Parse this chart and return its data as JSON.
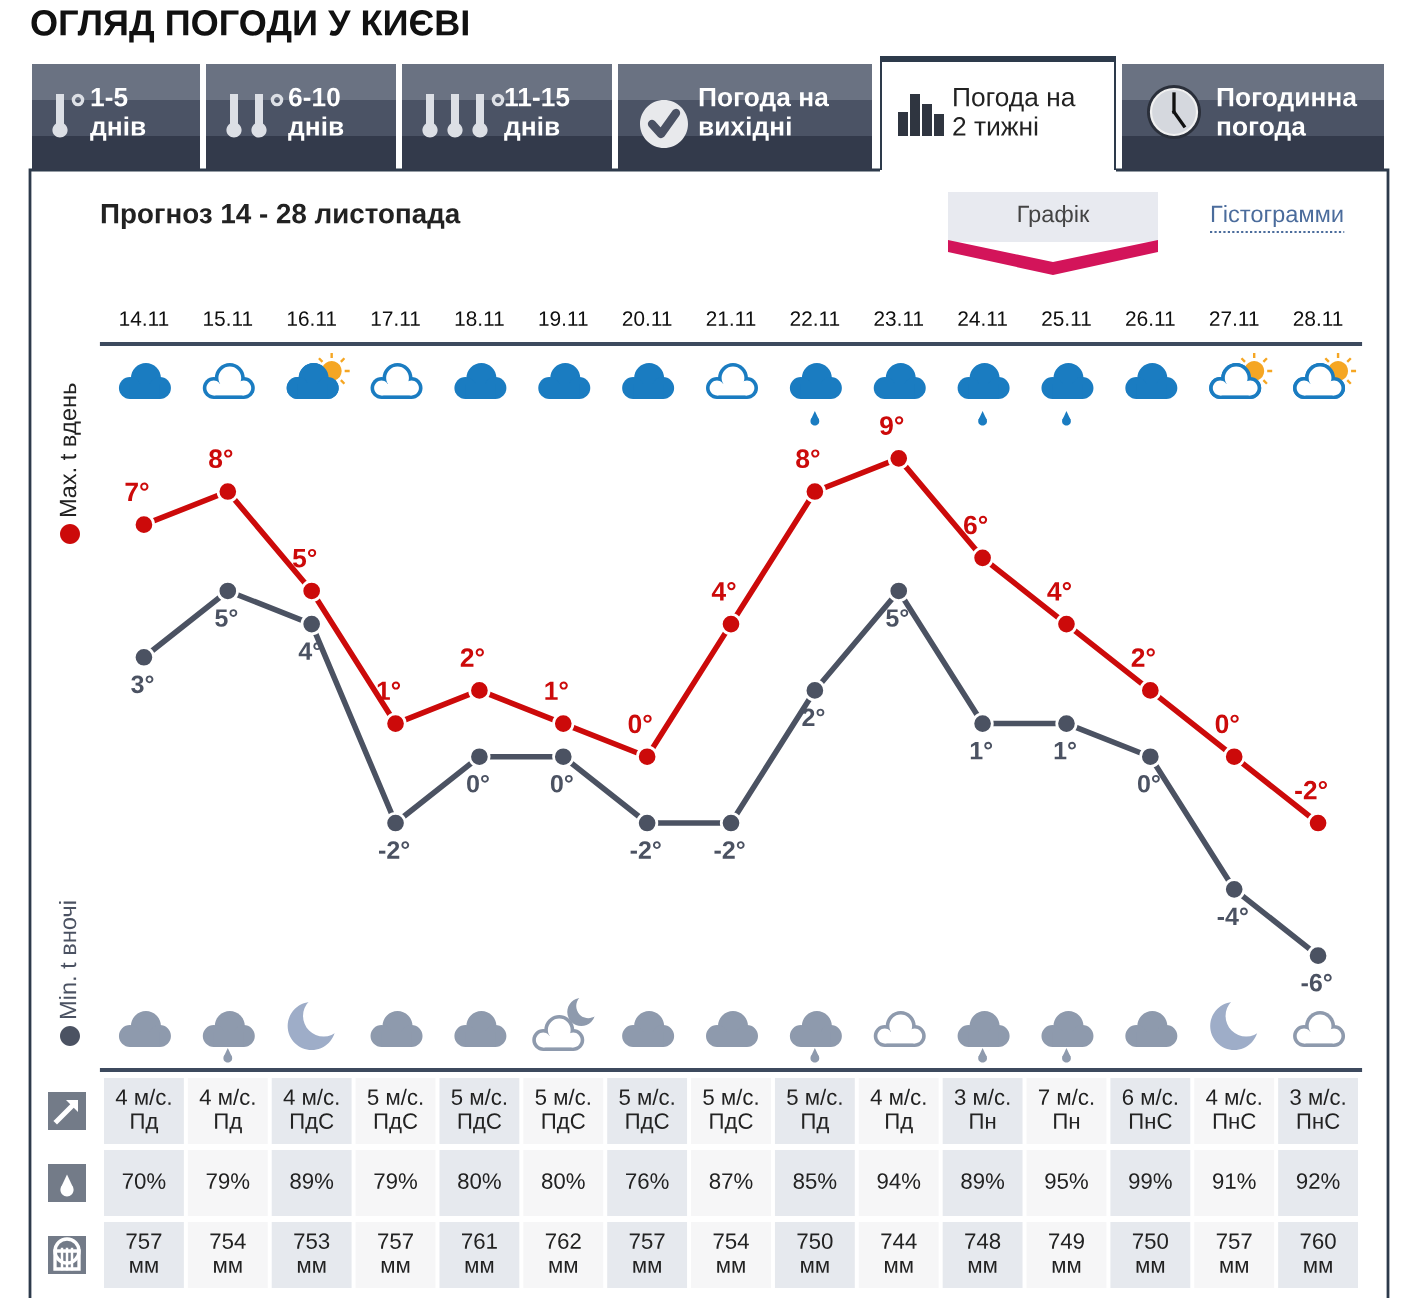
{
  "chart_data": [
    {
      "type": "other",
      "title": "ОГЛЯД ПОГОДИ У КИЄВІ",
      "annotations": [
        "1-5\nднів",
        "6-10\nднів",
        "11-15\nднів",
        "Погода на\nвихідні",
        "Погода на\n2 тижні",
        "Погодинна\nпогода"
      ]
    },
    {
      "type": "line",
      "title": "Прогноз 14 - 28 листопада",
      "annotations": [
        "Графік",
        "Гістограмми"
      ],
      "categories": [
        "14.11",
        "15.11",
        "16.11",
        "17.11",
        "18.11",
        "19.11",
        "20.11",
        "21.11",
        "22.11",
        "23.11",
        "24.11",
        "25.11",
        "26.11",
        "27.11",
        "28.11"
      ],
      "series": [
        {
          "name": "Max. t вдень",
          "color": "#cc0a0a",
          "values": [
            7,
            8,
            5,
            1,
            2,
            1,
            0,
            4,
            8,
            9,
            6,
            4,
            2,
            0,
            -2
          ],
          "value_labels": [
            "7°",
            "8°",
            "5°",
            "1°",
            "2°",
            "1°",
            "0°",
            "4°",
            "8°",
            "9°",
            "6°",
            "4°",
            "2°",
            "0°",
            "-2°"
          ]
        },
        {
          "name": "Min. t вночі",
          "color": "#4b5262",
          "values": [
            3,
            5,
            4,
            -2,
            0,
            0,
            -2,
            -2,
            2,
            5,
            1,
            1,
            0,
            -4,
            -6
          ],
          "value_labels": [
            "3°",
            "5°",
            "4°",
            "-2°",
            "0°",
            "0°",
            "-2°",
            "-2°",
            "2°",
            "5°",
            "1°",
            "1°",
            "0°",
            "-4°",
            "-6°"
          ]
        }
      ],
      "marker": "circle",
      "line_style": "solid",
      "legend": "left"
    },
    {
      "type": "other",
      "cell_labels": [
        [
          "4 м/с.\nПд",
          "4 м/с.\nПд",
          "4 м/с.\nПдС",
          "5 м/с.\nПдС",
          "5 м/с.\nПдС",
          "5 м/с.\nПдС",
          "5 м/с.\nПдС",
          "5 м/с.\nПдС",
          "5 м/с.\nПд",
          "4 м/с.\nПд",
          "3 м/с.\nПн",
          "7 м/с.\nПн",
          "6 м/с.\nПнС",
          "4 м/с.\nПнС",
          "3 м/с.\nПнС"
        ],
        [
          "70%",
          "79%",
          "89%",
          "79%",
          "80%",
          "80%",
          "76%",
          "87%",
          "85%",
          "94%",
          "89%",
          "95%",
          "99%",
          "91%",
          "92%"
        ],
        [
          "757\nмм",
          "754\nмм",
          "753\nмм",
          "757\nмм",
          "761\nмм",
          "762\nмм",
          "757\nмм",
          "754\nмм",
          "750\nмм",
          "744\nмм",
          "748\nмм",
          "749\nмм",
          "750\nмм",
          "757\nмм",
          "760\nмм"
        ]
      ]
    }
  ]
}
